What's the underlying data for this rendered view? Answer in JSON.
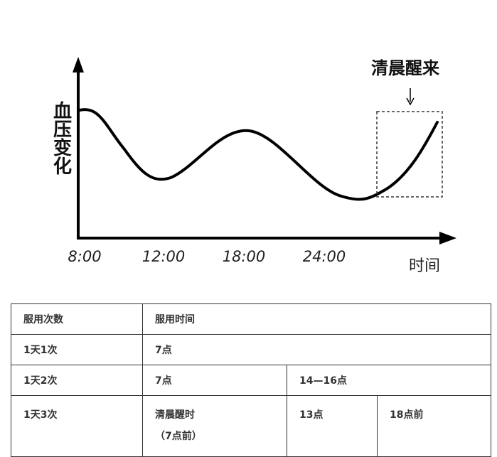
{
  "diagram": {
    "y_label": "血压变化",
    "x_labels": [
      "8:00",
      "12:00",
      "18:00",
      "24:00"
    ],
    "x_label": "时间",
    "annotation": "清晨醒来"
  },
  "table": {
    "rows": [
      [
        "服用次数",
        "服用时间"
      ],
      [
        "1天1次",
        "7点"
      ],
      [
        "1天2次",
        "7点",
        "14—16点"
      ],
      [
        "1天3次",
        [
          "清晨醒时",
          "（7点前）"
        ],
        "13点",
        "18点前"
      ]
    ]
  }
}
